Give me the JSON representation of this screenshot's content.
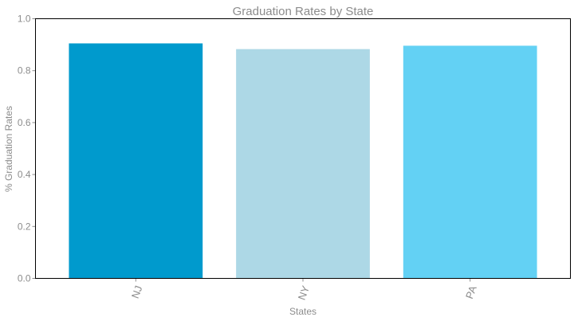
{
  "chart_data": {
    "type": "bar",
    "title": "Graduation Rates by State",
    "xlabel": "States",
    "ylabel": "% Graduation Rates",
    "categories": [
      "NJ",
      "NY",
      "PA"
    ],
    "values": [
      0.905,
      0.883,
      0.896
    ],
    "colors": [
      "#009ACD",
      "#ADD8E6",
      "#63D1F4"
    ],
    "ylim": [
      0,
      1.0
    ],
    "yticks": [
      0.0,
      0.2,
      0.4,
      0.6,
      0.8,
      1.0
    ],
    "ytick_labels": [
      "0.0",
      "0.2",
      "0.4",
      "0.6",
      "0.8",
      "1.0"
    ],
    "grid": false,
    "legend": "none"
  }
}
